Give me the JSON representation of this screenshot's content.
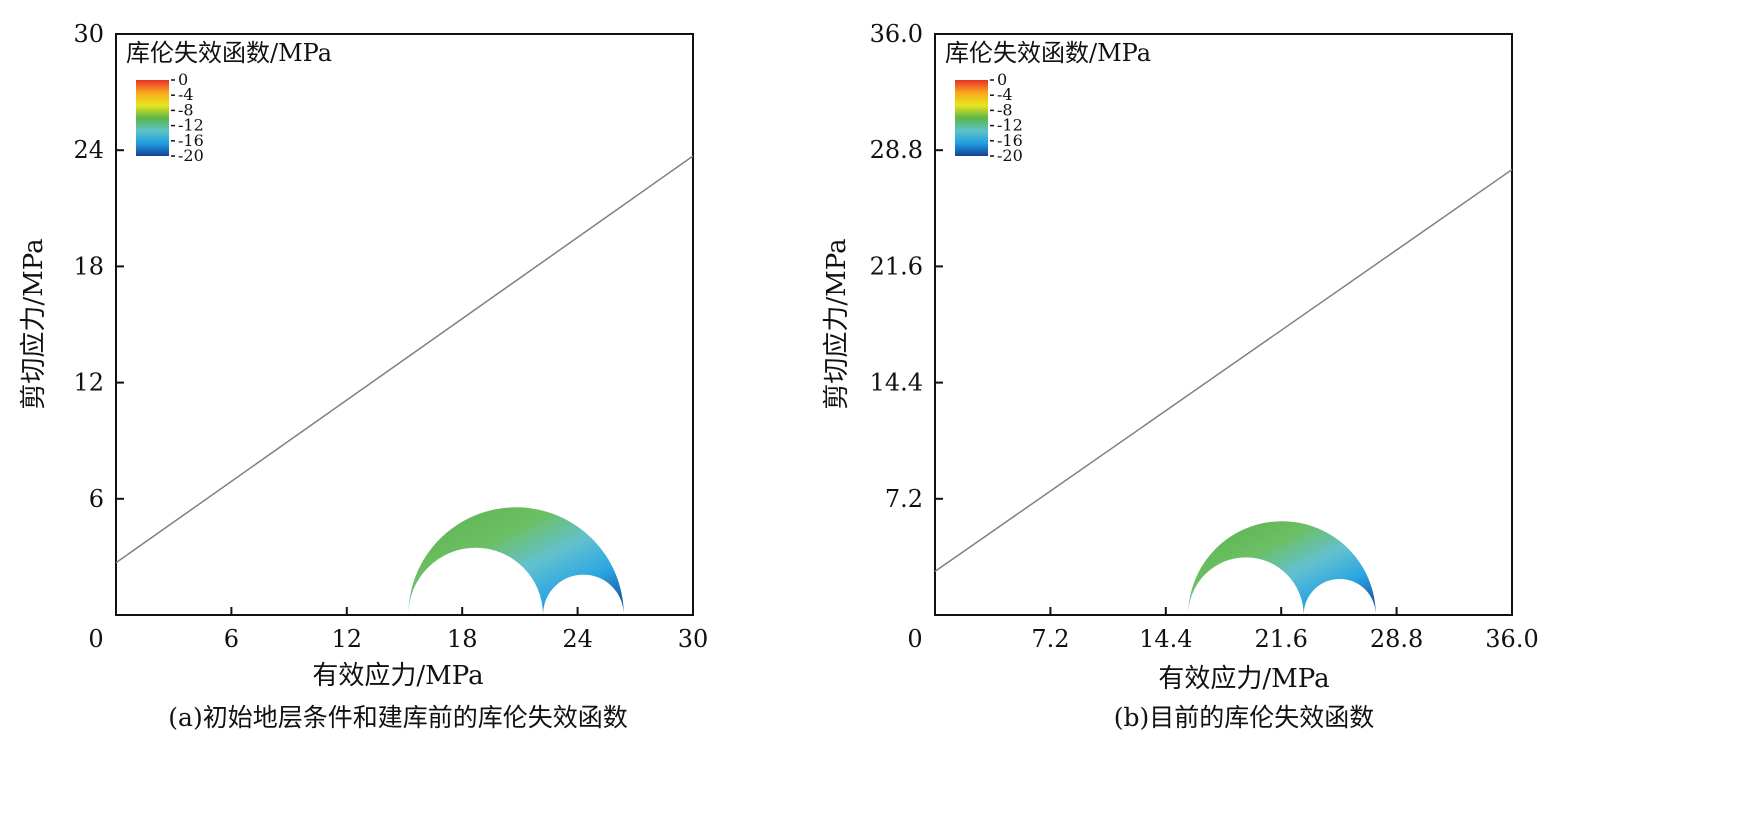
{
  "chart_data": [
    {
      "type": "line",
      "caption": "(a)初始地层条件和建库前的库伦失效函数",
      "xlabel": "有效应力/MPa",
      "ylabel": "剪切应力/MPa",
      "xlim": [
        0,
        30
      ],
      "ylim": [
        0,
        30
      ],
      "xticks": [
        0,
        6,
        12,
        18,
        24,
        30
      ],
      "yticks": [
        0,
        6,
        12,
        18,
        24,
        30
      ],
      "xtick_labels": [
        "0",
        "6",
        "12",
        "18",
        "24",
        "30"
      ],
      "ytick_labels": [
        "0",
        "6",
        "12",
        "18",
        "24",
        "30"
      ],
      "grid": false,
      "failure_line": {
        "x": [
          0,
          30
        ],
        "y": [
          2.7,
          23.7
        ],
        "color": "#808080"
      },
      "mohr_circles": {
        "sigma3": 15.2,
        "sigma2": 22.2,
        "sigma1": 26.4
      },
      "colorbar": {
        "title": "库伦失效函数/MPa",
        "ticks": [
          0,
          -4,
          -8,
          -12,
          -16,
          -20
        ],
        "tick_labels": [
          "0",
          "-4",
          "-8",
          "-12",
          "-16",
          "-20"
        ],
        "range": [
          -20,
          0
        ],
        "placement": "top-left",
        "colors": [
          "#e8302a",
          "#f7a81b",
          "#e8e41e",
          "#5cb64a",
          "#5ec2c8",
          "#1f9fe0",
          "#173f96"
        ]
      }
    },
    {
      "type": "line",
      "caption": "(b)目前的库伦失效函数",
      "xlabel": "有效应力/MPa",
      "ylabel": "剪切应力/MPa",
      "xlim": [
        0,
        36
      ],
      "ylim": [
        0,
        36
      ],
      "xticks": [
        0,
        7.2,
        14.4,
        21.6,
        28.8,
        36
      ],
      "yticks": [
        0,
        7.2,
        14.4,
        21.6,
        28.8,
        36
      ],
      "xtick_labels": [
        "0",
        "7.2",
        "14.4",
        "21.6",
        "28.8",
        "36.0"
      ],
      "ytick_labels": [
        "0",
        "7.2",
        "14.4",
        "21.6",
        "28.8",
        "36.0"
      ],
      "grid": false,
      "failure_line": {
        "x": [
          0,
          36
        ],
        "y": [
          2.7,
          27.6
        ],
        "color": "#808080"
      },
      "mohr_circles": {
        "sigma3": 15.8,
        "sigma2": 23.0,
        "sigma1": 27.5
      },
      "colorbar": {
        "title": "库伦失效函数/MPa",
        "ticks": [
          0,
          -4,
          -8,
          -12,
          -16,
          -20
        ],
        "tick_labels": [
          "0",
          "-4",
          "-8",
          "-12",
          "-16",
          "-20"
        ],
        "range": [
          -20,
          0
        ],
        "placement": "top-left",
        "colors": [
          "#e8302a",
          "#f7a81b",
          "#e8e41e",
          "#5cb64a",
          "#5ec2c8",
          "#1f9fe0",
          "#173f96"
        ]
      }
    }
  ]
}
